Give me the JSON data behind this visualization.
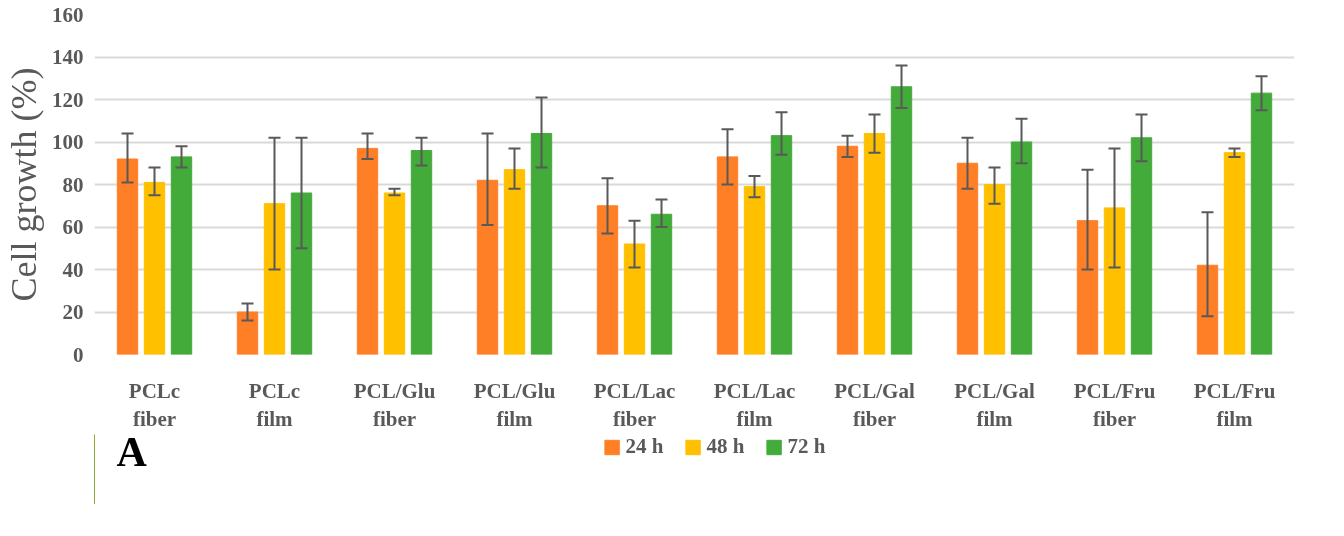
{
  "chart_data": {
    "type": "bar",
    "ylabel": "Cell growth (%)",
    "categories": [
      "PCLc\nfiber",
      "PCLc\nfilm",
      "PCL/Glu\nfiber",
      "PCL/Glu\nfilm",
      "PCL/Lac\nfiber",
      "PCL/Lac\nfilm",
      "PCL/Gal\nfiber",
      "PCL/Gal\nfilm",
      "PCL/Fru\nfiber",
      "PCL/Fru\nfilm"
    ],
    "series": [
      {
        "name": "24 h",
        "color": "#ff7f27",
        "values": [
          92,
          20,
          97,
          82,
          70,
          93,
          98,
          90,
          63,
          42
        ],
        "errors": [
          [
            81,
            104
          ],
          [
            16,
            24
          ],
          [
            92,
            104
          ],
          [
            61,
            104
          ],
          [
            57,
            83
          ],
          [
            80,
            106
          ],
          [
            93,
            103
          ],
          [
            78,
            102
          ],
          [
            40,
            87
          ],
          [
            18,
            67
          ]
        ]
      },
      {
        "name": "48 h",
        "color": "#ffc000",
        "values": [
          81,
          71,
          76,
          87,
          52,
          79,
          104,
          80,
          69,
          95
        ],
        "errors": [
          [
            75,
            88
          ],
          [
            40,
            102
          ],
          [
            75,
            78
          ],
          [
            78,
            97
          ],
          [
            41,
            63
          ],
          [
            74,
            84
          ],
          [
            95,
            113
          ],
          [
            71,
            88
          ],
          [
            41,
            97
          ],
          [
            93,
            97
          ]
        ]
      },
      {
        "name": "72 h",
        "color": "#43ab3a",
        "values": [
          93,
          76,
          96,
          104,
          66,
          103,
          126,
          100,
          102,
          123
        ],
        "errors": [
          [
            88,
            98
          ],
          [
            50,
            102
          ],
          [
            89,
            102
          ],
          [
            88,
            121
          ],
          [
            60,
            73
          ],
          [
            94,
            114
          ],
          [
            116,
            136
          ],
          [
            90,
            111
          ],
          [
            91,
            113
          ],
          [
            115,
            131
          ]
        ]
      }
    ],
    "ylim": [
      0,
      160
    ],
    "yticks": [
      0,
      20,
      40,
      60,
      80,
      100,
      120,
      140,
      160
    ],
    "grid": "y",
    "legend": "bottom",
    "annotations": [
      "A"
    ]
  }
}
